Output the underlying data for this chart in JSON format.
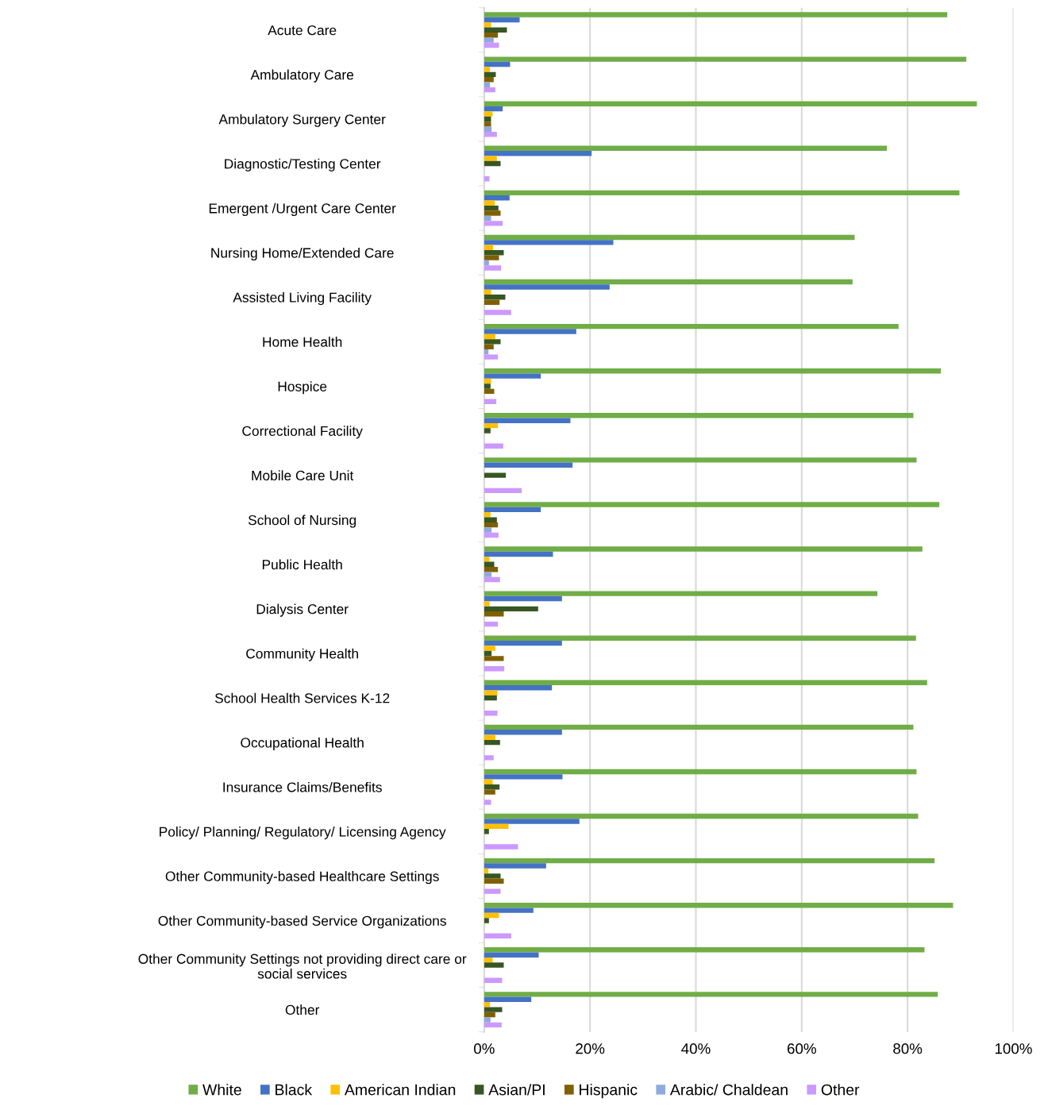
{
  "chart_data": {
    "type": "bar",
    "orientation": "horizontal",
    "categories": [
      "Acute Care",
      "Ambulatory Care",
      "Ambulatory Surgery Center",
      "Diagnostic/Testing Center",
      "Emergent /Urgent Care Center",
      "Nursing Home/Extended Care",
      "Assisted Living Facility",
      "Home Health",
      "Hospice",
      "Correctional Facility",
      "Mobile Care Unit",
      "School of Nursing",
      "Public Health",
      "Dialysis Center",
      "Community Health",
      "School Health Services K-12",
      "Occupational Health",
      "Insurance Claims/Benefits",
      "Policy/ Planning/ Regulatory/ Licensing Agency",
      "Other Community-based Healthcare Settings",
      "Other Community-based Service Organizations",
      "Other Community Settings not providing direct care or\nsocial services",
      "Other"
    ],
    "series": [
      {
        "name": "White",
        "color": "#70ad47",
        "values": [
          87.5,
          91.1,
          93.1,
          76.1,
          89.8,
          70.0,
          69.6,
          78.3,
          86.3,
          81.1,
          81.7,
          86.0,
          82.8,
          74.3,
          81.6,
          83.7,
          81.1,
          81.7,
          82.0,
          85.1,
          88.6,
          83.2,
          85.7
        ]
      },
      {
        "name": "Black",
        "color": "#4472c4",
        "values": [
          6.7,
          4.9,
          3.5,
          20.3,
          4.8,
          24.4,
          23.7,
          17.4,
          10.7,
          16.3,
          16.7,
          10.7,
          13.0,
          14.7,
          14.7,
          12.8,
          14.7,
          14.8,
          18.0,
          11.7,
          9.3,
          10.3,
          8.9
        ]
      },
      {
        "name": "American Indian",
        "color": "#ffc000",
        "values": [
          1.3,
          1.1,
          1.6,
          2.4,
          2.0,
          1.7,
          1.3,
          2.1,
          1.3,
          2.6,
          0,
          1.2,
          1.0,
          1.0,
          2.1,
          2.5,
          2.1,
          1.6,
          4.6,
          0.8,
          2.8,
          1.6,
          1.1
        ]
      },
      {
        "name": "Asian/PI",
        "color": "#375623",
        "values": [
          4.3,
          2.2,
          1.3,
          3.1,
          2.7,
          3.7,
          4.0,
          3.1,
          1.2,
          1.2,
          4.1,
          2.4,
          1.9,
          10.2,
          1.4,
          2.4,
          3.0,
          2.9,
          0.9,
          3.1,
          0.9,
          3.7,
          3.4
        ]
      },
      {
        "name": "Hispanic",
        "color": "#7f6000",
        "values": [
          2.6,
          1.8,
          1.3,
          0,
          3.1,
          2.8,
          2.9,
          1.8,
          1.9,
          0,
          0,
          2.6,
          2.6,
          3.7,
          3.7,
          0,
          0,
          2.1,
          0,
          3.7,
          0,
          0,
          2.1
        ]
      },
      {
        "name": "Arabic/ Chaldean",
        "color": "#8faadc",
        "values": [
          1.8,
          1.1,
          1.4,
          0,
          1.3,
          0.9,
          0,
          0.8,
          0,
          0,
          0,
          1.4,
          1.4,
          0,
          0,
          0,
          0,
          0,
          0,
          0,
          0,
          0,
          1.2
        ]
      },
      {
        "name": "Other",
        "color": "#cc99ff",
        "values": [
          2.8,
          2.1,
          2.4,
          1.0,
          3.5,
          3.2,
          5.1,
          2.6,
          2.3,
          3.6,
          7.1,
          2.7,
          3.0,
          2.6,
          3.8,
          2.5,
          1.8,
          1.3,
          6.4,
          3.1,
          5.1,
          3.4,
          3.3
        ]
      }
    ],
    "xlim": [
      0,
      100
    ],
    "xticks": [
      {
        "value": 0,
        "label": "0%"
      },
      {
        "value": 20,
        "label": "20%"
      },
      {
        "value": 40,
        "label": "40%"
      },
      {
        "value": 60,
        "label": "60%"
      },
      {
        "value": 80,
        "label": "80%"
      },
      {
        "value": 100,
        "label": "100%"
      }
    ],
    "grid": "x",
    "legend": "bottom"
  }
}
